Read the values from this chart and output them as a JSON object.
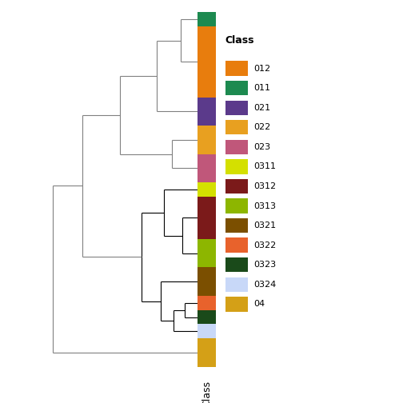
{
  "classes": [
    "012",
    "011",
    "021",
    "022",
    "023",
    "0311",
    "0312",
    "0313",
    "0321",
    "0322",
    "0323",
    "0324",
    "04"
  ],
  "class_colors": {
    "012": "#E87D0D",
    "011": "#1D8A50",
    "021": "#5B3A8B",
    "022": "#E8A020",
    "023": "#C0577A",
    "0311": "#D4E000",
    "0312": "#7B1A1A",
    "0313": "#8DB600",
    "0321": "#7B4F00",
    "0322": "#E8622C",
    "0323": "#1A4A1A",
    "0324": "#C8D8F8",
    "04": "#D4A017"
  },
  "bar_order_top_to_bottom": [
    "011",
    "012",
    "021",
    "022",
    "023",
    "0311",
    "0312",
    "0313",
    "0321",
    "0322",
    "0323",
    "0324",
    "04"
  ],
  "bar_heights": [
    1,
    5,
    2,
    2,
    2,
    1,
    3,
    2,
    2,
    1,
    1,
    1,
    2
  ],
  "background_color": "#FFFFFF",
  "legend_title": "Class",
  "xlabel": "Class"
}
